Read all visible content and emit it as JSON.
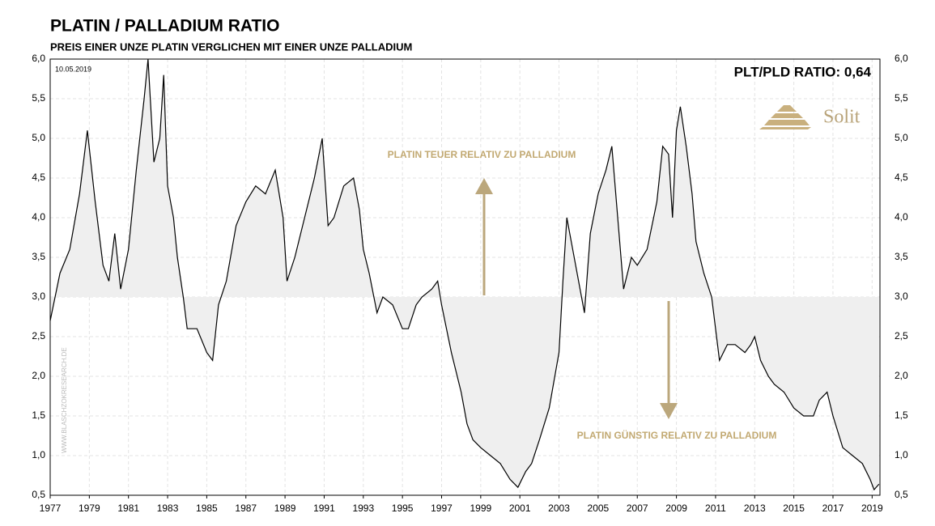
{
  "chart_data": {
    "type": "line",
    "title": "PLATIN / PALLADIUM RATIO",
    "subtitle": "PREIS EINER UNZE PLATIN VERGLICHEN MIT EINER UNZE PALLADIUM",
    "date_label": "10.05.2019",
    "ratio_label": "PLT/PLD RATIO: 0,64",
    "brand": "Solit",
    "watermark": "WWW.BLASCHZOKRESEARCH.DE",
    "annotations": [
      "PLATIN  TEUER  RELATIV  ZU  PALLADIUM",
      "PLATIN  GÜNSTIG  RELATIV  ZU  PALLADIUM"
    ],
    "color": "#000000",
    "fill_color": "#efefef",
    "baseline": 3,
    "grid": true,
    "xlim": [
      1977,
      2019.4
    ],
    "ylim": [
      0.5,
      6
    ],
    "xticks": [
      1977,
      1979,
      1981,
      1983,
      1985,
      1987,
      1989,
      1991,
      1993,
      1995,
      1997,
      1999,
      2001,
      2003,
      2005,
      2007,
      2009,
      2011,
      2013,
      2015,
      2017,
      2019
    ],
    "yticks": [
      {
        "value": 0.5,
        "label": "0,5"
      },
      {
        "value": 1,
        "label": "1,0"
      },
      {
        "value": 1.5,
        "label": "1,5"
      },
      {
        "value": 2,
        "label": "2,0"
      },
      {
        "value": 2.5,
        "label": "2,5"
      },
      {
        "value": 3,
        "label": "3,0"
      },
      {
        "value": 3.5,
        "label": "3,5"
      },
      {
        "value": 4,
        "label": "4,0"
      },
      {
        "value": 4.5,
        "label": "4,5"
      },
      {
        "value": 5,
        "label": "5,0"
      },
      {
        "value": 5.5,
        "label": "5,5"
      },
      {
        "value": 6,
        "label": "6,0"
      }
    ],
    "x": [
      1977.0,
      1977.5,
      1978.0,
      1978.5,
      1978.9,
      1979.3,
      1979.7,
      1980.0,
      1980.3,
      1980.6,
      1981.0,
      1981.4,
      1981.8,
      1982.0,
      1982.3,
      1982.6,
      1982.8,
      1983.0,
      1983.3,
      1983.5,
      1983.8,
      1984.0,
      1984.5,
      1985.0,
      1985.3,
      1985.6,
      1986.0,
      1986.5,
      1987.0,
      1987.5,
      1988.0,
      1988.5,
      1988.9,
      1989.1,
      1989.5,
      1990.0,
      1990.5,
      1990.9,
      1991.2,
      1991.5,
      1992.0,
      1992.5,
      1992.8,
      1993.0,
      1993.3,
      1993.7,
      1994.0,
      1994.5,
      1995.0,
      1995.3,
      1995.7,
      1996.0,
      1996.5,
      1996.8,
      1997.0,
      1997.5,
      1998.0,
      1998.3,
      1998.6,
      1999.0,
      1999.5,
      2000.0,
      2000.5,
      2000.9,
      2001.3,
      2001.6,
      2002.0,
      2002.5,
      2003.0,
      2003.2,
      2003.4,
      2003.7,
      2004.0,
      2004.3,
      2004.6,
      2005.0,
      2005.4,
      2005.7,
      2006.0,
      2006.3,
      2006.7,
      2007.0,
      2007.5,
      2008.0,
      2008.3,
      2008.6,
      2008.8,
      2009.0,
      2009.2,
      2009.5,
      2009.8,
      2010.0,
      2010.4,
      2010.8,
      2011.0,
      2011.2,
      2011.6,
      2012.0,
      2012.5,
      2012.8,
      2013.0,
      2013.3,
      2013.7,
      2014.0,
      2014.5,
      2015.0,
      2015.5,
      2016.0,
      2016.3,
      2016.7,
      2017.0,
      2017.5,
      2018.0,
      2018.5,
      2018.9,
      2019.1,
      2019.35
    ],
    "values": [
      2.7,
      3.3,
      3.6,
      4.3,
      5.1,
      4.2,
      3.4,
      3.2,
      3.8,
      3.1,
      3.6,
      4.6,
      5.5,
      6.0,
      4.7,
      5.0,
      5.8,
      4.4,
      4.0,
      3.5,
      3.0,
      2.6,
      2.6,
      2.3,
      2.2,
      2.9,
      3.2,
      3.9,
      4.2,
      4.4,
      4.3,
      4.6,
      4.0,
      3.2,
      3.5,
      4.0,
      4.5,
      5.0,
      3.9,
      4.0,
      4.4,
      4.5,
      4.1,
      3.6,
      3.3,
      2.8,
      3.0,
      2.9,
      2.6,
      2.6,
      2.9,
      3.0,
      3.1,
      3.2,
      2.9,
      2.3,
      1.8,
      1.4,
      1.2,
      1.1,
      1.0,
      0.9,
      0.7,
      0.6,
      0.8,
      0.9,
      1.2,
      1.6,
      2.3,
      3.2,
      4.0,
      3.6,
      3.2,
      2.8,
      3.8,
      4.3,
      4.6,
      4.9,
      4.0,
      3.1,
      3.5,
      3.4,
      3.6,
      4.2,
      4.9,
      4.8,
      4.0,
      5.1,
      5.4,
      4.9,
      4.3,
      3.7,
      3.3,
      3.0,
      2.6,
      2.2,
      2.4,
      2.4,
      2.3,
      2.4,
      2.5,
      2.2,
      2.0,
      1.9,
      1.8,
      1.6,
      1.5,
      1.5,
      1.7,
      1.8,
      1.5,
      1.1,
      1.0,
      0.9,
      0.7,
      0.57,
      0.64
    ]
  }
}
